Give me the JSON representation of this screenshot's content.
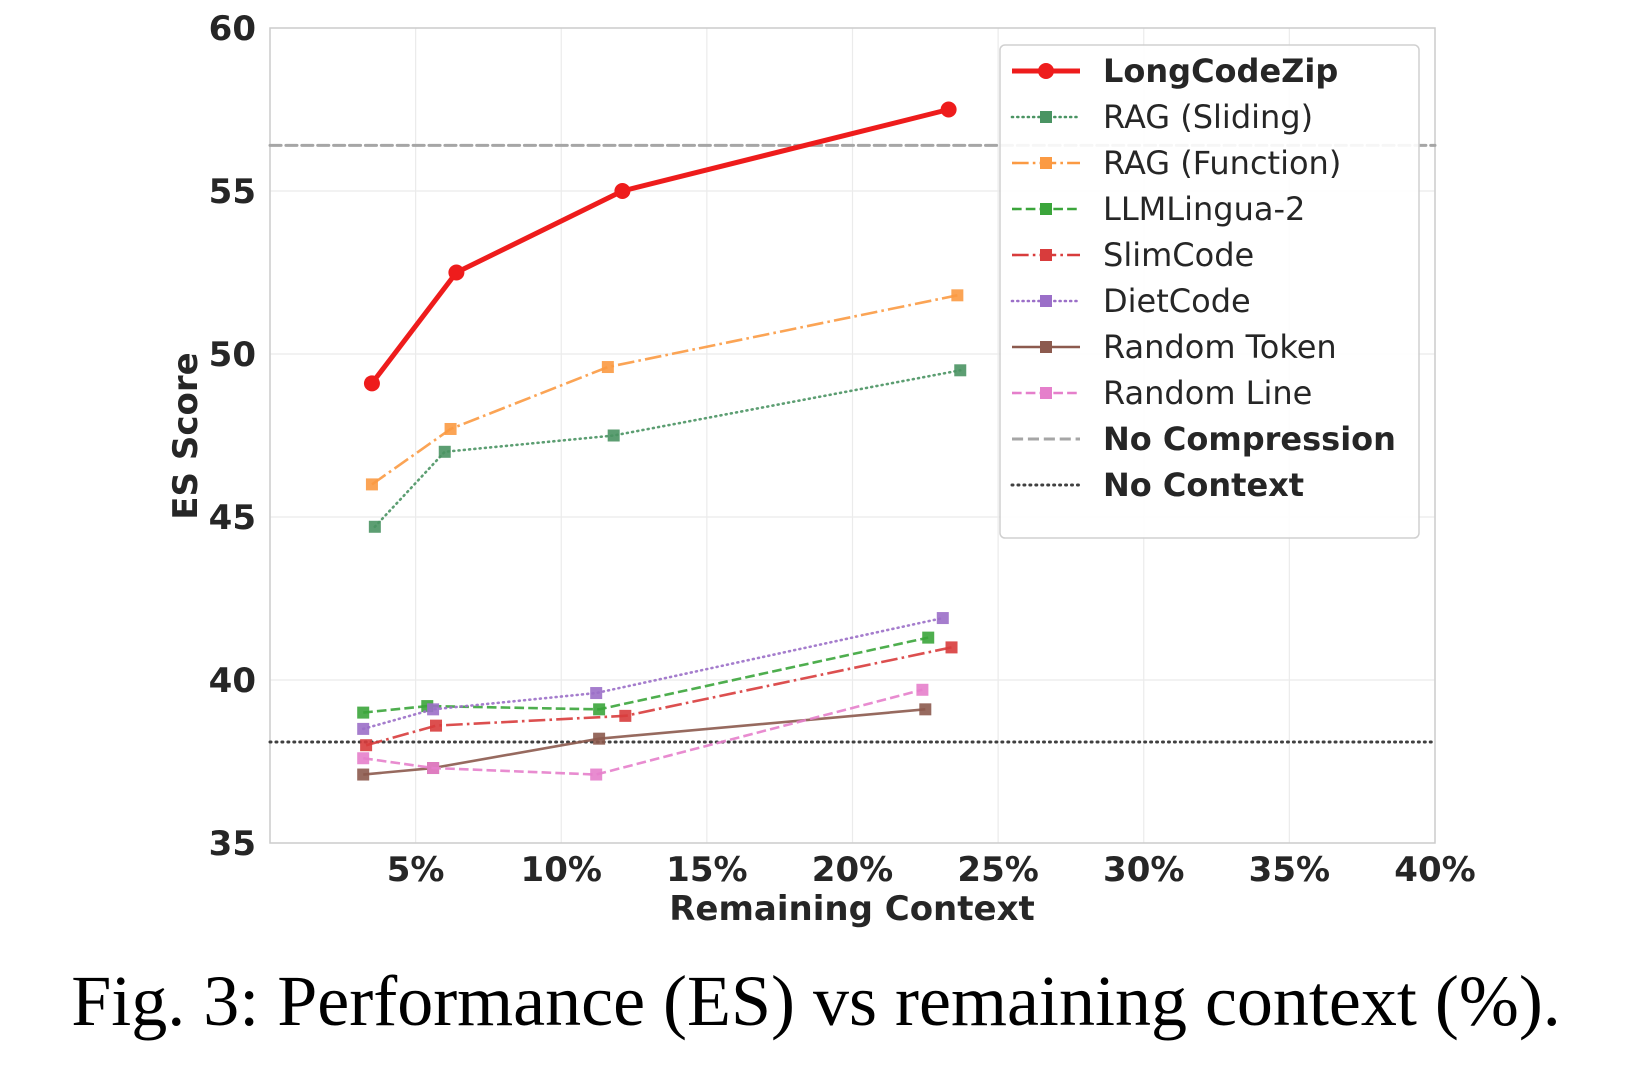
{
  "caption": "Fig. 3: Performance (ES) vs remaining context (%).",
  "chart_data": {
    "type": "line",
    "xlabel": "Remaining Context",
    "ylabel": "ES Score",
    "xlim": [
      0,
      40
    ],
    "ylim": [
      35,
      60
    ],
    "xticks": [
      5,
      10,
      15,
      20,
      25,
      30,
      35,
      40
    ],
    "xtick_labels": [
      "5%",
      "10%",
      "15%",
      "20%",
      "25%",
      "30%",
      "35%",
      "40%"
    ],
    "yticks": [
      35,
      40,
      45,
      50,
      55,
      60
    ],
    "ytick_labels": [
      "35",
      "40",
      "45",
      "50",
      "55",
      "60"
    ],
    "grid": true,
    "legend_position": "top-right",
    "series": [
      {
        "name": "LongCodeZip",
        "color": "#ee1c1c",
        "style": "solid",
        "marker": "circle",
        "bold": true,
        "x": [
          3.5,
          6.4,
          12.1,
          23.3
        ],
        "y": [
          49.1,
          52.5,
          55.0,
          57.5
        ]
      },
      {
        "name": "RAG (Sliding)",
        "color": "#4a9463",
        "style": "dotted",
        "marker": "square",
        "bold": false,
        "x": [
          3.6,
          6.0,
          11.8,
          23.7
        ],
        "y": [
          44.7,
          47.0,
          47.5,
          49.5
        ]
      },
      {
        "name": "RAG (Function)",
        "color": "#fb9a43",
        "style": "dashdot",
        "marker": "square",
        "bold": false,
        "x": [
          3.5,
          6.2,
          11.6,
          23.6
        ],
        "y": [
          46.0,
          47.7,
          49.6,
          51.8
        ]
      },
      {
        "name": "LLMLingua-2",
        "color": "#3ba53b",
        "style": "dashed",
        "marker": "square",
        "bold": false,
        "x": [
          3.2,
          5.4,
          11.3,
          22.6
        ],
        "y": [
          39.0,
          39.2,
          39.1,
          41.3
        ]
      },
      {
        "name": "SlimCode",
        "color": "#d83c3c",
        "style": "dashdot",
        "marker": "square",
        "bold": false,
        "x": [
          3.3,
          5.7,
          12.2,
          23.4
        ],
        "y": [
          38.0,
          38.6,
          38.9,
          41.0
        ]
      },
      {
        "name": "DietCode",
        "color": "#9b6fc8",
        "style": "dotted",
        "marker": "square",
        "bold": false,
        "x": [
          3.2,
          5.6,
          11.2,
          23.1
        ],
        "y": [
          38.5,
          39.1,
          39.6,
          41.9
        ]
      },
      {
        "name": "Random Token",
        "color": "#8c5a4e",
        "style": "solid",
        "marker": "square",
        "bold": false,
        "x": [
          3.2,
          5.6,
          11.3,
          22.5
        ],
        "y": [
          37.1,
          37.3,
          38.2,
          39.1
        ]
      },
      {
        "name": "Random Line",
        "color": "#e57fcb",
        "style": "dashed",
        "marker": "square",
        "bold": false,
        "x": [
          3.2,
          5.6,
          11.2,
          22.4
        ],
        "y": [
          37.6,
          37.3,
          37.1,
          39.7
        ]
      }
    ],
    "reference_lines": [
      {
        "name": "No Compression",
        "y": 56.4,
        "color": "#a6a6a6",
        "style": "dashed",
        "bold": true
      },
      {
        "name": "No Context",
        "y": 38.1,
        "color": "#404040",
        "style": "dotted",
        "bold": true
      }
    ]
  }
}
